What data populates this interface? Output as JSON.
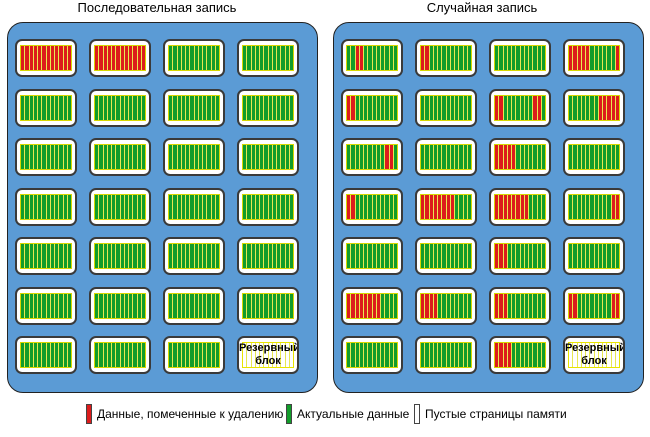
{
  "titles": {
    "left": "Последовательная запись",
    "right": "Случайная запись"
  },
  "reserve_label": [
    "Резервный",
    "блок"
  ],
  "legend": {
    "deleted": "Данные, помеченные к удалению",
    "actual": "Актуальные данные",
    "empty": "Пустые страницы памяти"
  },
  "colors": {
    "panel": "#5b9bd5",
    "deleted": "#dc1c1c",
    "actual": "#129c2a",
    "empty": "#ffffff"
  },
  "pages_per_block": 12,
  "grids": {
    "sequential": [
      [
        [
          "all_d"
        ],
        [
          "all_d"
        ],
        [
          "all_a"
        ],
        [
          "all_a"
        ]
      ],
      [
        [
          "all_a"
        ],
        [
          "all_a"
        ],
        [
          "all_a"
        ],
        [
          "all_a"
        ]
      ],
      [
        [
          "all_a"
        ],
        [
          "all_a"
        ],
        [
          "all_a"
        ],
        [
          "all_a"
        ]
      ],
      [
        [
          "all_a"
        ],
        [
          "all_a"
        ],
        [
          "all_a"
        ],
        [
          "all_a"
        ]
      ],
      [
        [
          "all_a"
        ],
        [
          "all_a"
        ],
        [
          "all_a"
        ],
        [
          "all_a"
        ]
      ],
      [
        [
          "all_a"
        ],
        [
          "all_a"
        ],
        [
          "all_a"
        ],
        [
          "all_a"
        ]
      ],
      [
        [
          "all_a"
        ],
        [
          "all_a"
        ],
        [
          "all_a"
        ],
        [
          "reserve"
        ]
      ]
    ],
    "random": [
      [
        [
          [
            2,
            3
          ]
        ],
        [
          [
            0,
            1
          ]
        ],
        [],
        [
          [
            0,
            4
          ],
          [
            11,
            11
          ]
        ]
      ],
      [
        [
          [
            0,
            1
          ]
        ],
        [],
        [
          [
            0,
            1
          ],
          [
            9,
            10
          ]
        ],
        [
          [
            7,
            11
          ]
        ]
      ],
      [
        [
          [
            9,
            10
          ]
        ],
        [],
        [
          [
            0,
            4
          ]
        ],
        []
      ],
      [
        [
          [
            0,
            1
          ]
        ],
        [
          [
            0,
            7
          ]
        ],
        [
          [
            0,
            7
          ]
        ],
        [
          [
            10,
            11
          ]
        ]
      ],
      [
        [],
        [],
        [
          [
            0,
            2
          ]
        ],
        []
      ],
      [
        [
          [
            0,
            7
          ]
        ],
        [
          [
            0,
            3
          ]
        ],
        [
          [
            0,
            2
          ]
        ],
        [
          [
            0,
            1
          ],
          [
            10,
            11
          ]
        ]
      ],
      [
        [],
        [],
        [
          [
            0,
            3
          ]
        ],
        [
          "reserve"
        ]
      ]
    ]
  }
}
